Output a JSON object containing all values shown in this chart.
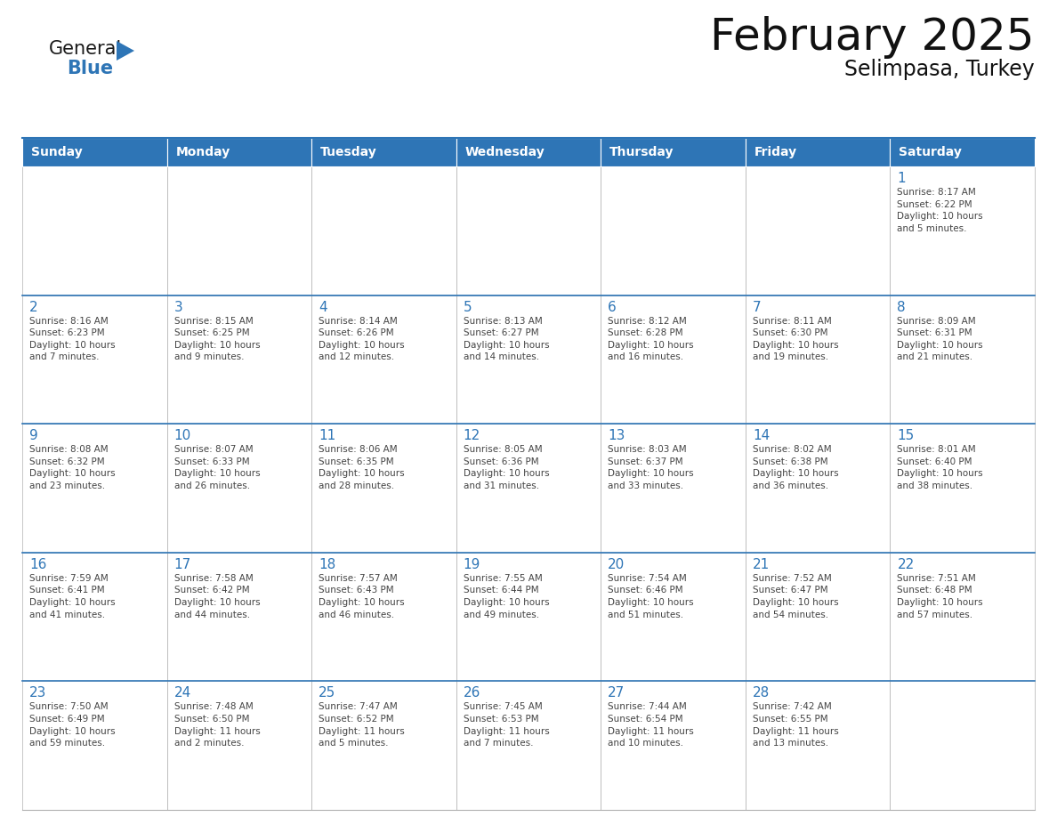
{
  "title": "February 2025",
  "subtitle": "Selimpasa, Turkey",
  "days_of_week": [
    "Sunday",
    "Monday",
    "Tuesday",
    "Wednesday",
    "Thursday",
    "Friday",
    "Saturday"
  ],
  "header_bg": "#2E75B6",
  "header_text": "#FFFFFF",
  "cell_bg": "#FFFFFF",
  "border_color": "#B0B0B0",
  "row_sep_color": "#2E75B6",
  "day_num_color": "#2E75B6",
  "text_color": "#444444",
  "title_color": "#111111",
  "logo_general_color": "#1A1A1A",
  "logo_blue_color": "#2E75B6",
  "weeks": [
    [
      {
        "day": null,
        "info": null
      },
      {
        "day": null,
        "info": null
      },
      {
        "day": null,
        "info": null
      },
      {
        "day": null,
        "info": null
      },
      {
        "day": null,
        "info": null
      },
      {
        "day": null,
        "info": null
      },
      {
        "day": 1,
        "info": "Sunrise: 8:17 AM\nSunset: 6:22 PM\nDaylight: 10 hours\nand 5 minutes."
      }
    ],
    [
      {
        "day": 2,
        "info": "Sunrise: 8:16 AM\nSunset: 6:23 PM\nDaylight: 10 hours\nand 7 minutes."
      },
      {
        "day": 3,
        "info": "Sunrise: 8:15 AM\nSunset: 6:25 PM\nDaylight: 10 hours\nand 9 minutes."
      },
      {
        "day": 4,
        "info": "Sunrise: 8:14 AM\nSunset: 6:26 PM\nDaylight: 10 hours\nand 12 minutes."
      },
      {
        "day": 5,
        "info": "Sunrise: 8:13 AM\nSunset: 6:27 PM\nDaylight: 10 hours\nand 14 minutes."
      },
      {
        "day": 6,
        "info": "Sunrise: 8:12 AM\nSunset: 6:28 PM\nDaylight: 10 hours\nand 16 minutes."
      },
      {
        "day": 7,
        "info": "Sunrise: 8:11 AM\nSunset: 6:30 PM\nDaylight: 10 hours\nand 19 minutes."
      },
      {
        "day": 8,
        "info": "Sunrise: 8:09 AM\nSunset: 6:31 PM\nDaylight: 10 hours\nand 21 minutes."
      }
    ],
    [
      {
        "day": 9,
        "info": "Sunrise: 8:08 AM\nSunset: 6:32 PM\nDaylight: 10 hours\nand 23 minutes."
      },
      {
        "day": 10,
        "info": "Sunrise: 8:07 AM\nSunset: 6:33 PM\nDaylight: 10 hours\nand 26 minutes."
      },
      {
        "day": 11,
        "info": "Sunrise: 8:06 AM\nSunset: 6:35 PM\nDaylight: 10 hours\nand 28 minutes."
      },
      {
        "day": 12,
        "info": "Sunrise: 8:05 AM\nSunset: 6:36 PM\nDaylight: 10 hours\nand 31 minutes."
      },
      {
        "day": 13,
        "info": "Sunrise: 8:03 AM\nSunset: 6:37 PM\nDaylight: 10 hours\nand 33 minutes."
      },
      {
        "day": 14,
        "info": "Sunrise: 8:02 AM\nSunset: 6:38 PM\nDaylight: 10 hours\nand 36 minutes."
      },
      {
        "day": 15,
        "info": "Sunrise: 8:01 AM\nSunset: 6:40 PM\nDaylight: 10 hours\nand 38 minutes."
      }
    ],
    [
      {
        "day": 16,
        "info": "Sunrise: 7:59 AM\nSunset: 6:41 PM\nDaylight: 10 hours\nand 41 minutes."
      },
      {
        "day": 17,
        "info": "Sunrise: 7:58 AM\nSunset: 6:42 PM\nDaylight: 10 hours\nand 44 minutes."
      },
      {
        "day": 18,
        "info": "Sunrise: 7:57 AM\nSunset: 6:43 PM\nDaylight: 10 hours\nand 46 minutes."
      },
      {
        "day": 19,
        "info": "Sunrise: 7:55 AM\nSunset: 6:44 PM\nDaylight: 10 hours\nand 49 minutes."
      },
      {
        "day": 20,
        "info": "Sunrise: 7:54 AM\nSunset: 6:46 PM\nDaylight: 10 hours\nand 51 minutes."
      },
      {
        "day": 21,
        "info": "Sunrise: 7:52 AM\nSunset: 6:47 PM\nDaylight: 10 hours\nand 54 minutes."
      },
      {
        "day": 22,
        "info": "Sunrise: 7:51 AM\nSunset: 6:48 PM\nDaylight: 10 hours\nand 57 minutes."
      }
    ],
    [
      {
        "day": 23,
        "info": "Sunrise: 7:50 AM\nSunset: 6:49 PM\nDaylight: 10 hours\nand 59 minutes."
      },
      {
        "day": 24,
        "info": "Sunrise: 7:48 AM\nSunset: 6:50 PM\nDaylight: 11 hours\nand 2 minutes."
      },
      {
        "day": 25,
        "info": "Sunrise: 7:47 AM\nSunset: 6:52 PM\nDaylight: 11 hours\nand 5 minutes."
      },
      {
        "day": 26,
        "info": "Sunrise: 7:45 AM\nSunset: 6:53 PM\nDaylight: 11 hours\nand 7 minutes."
      },
      {
        "day": 27,
        "info": "Sunrise: 7:44 AM\nSunset: 6:54 PM\nDaylight: 11 hours\nand 10 minutes."
      },
      {
        "day": 28,
        "info": "Sunrise: 7:42 AM\nSunset: 6:55 PM\nDaylight: 11 hours\nand 13 minutes."
      },
      {
        "day": null,
        "info": null
      }
    ]
  ]
}
